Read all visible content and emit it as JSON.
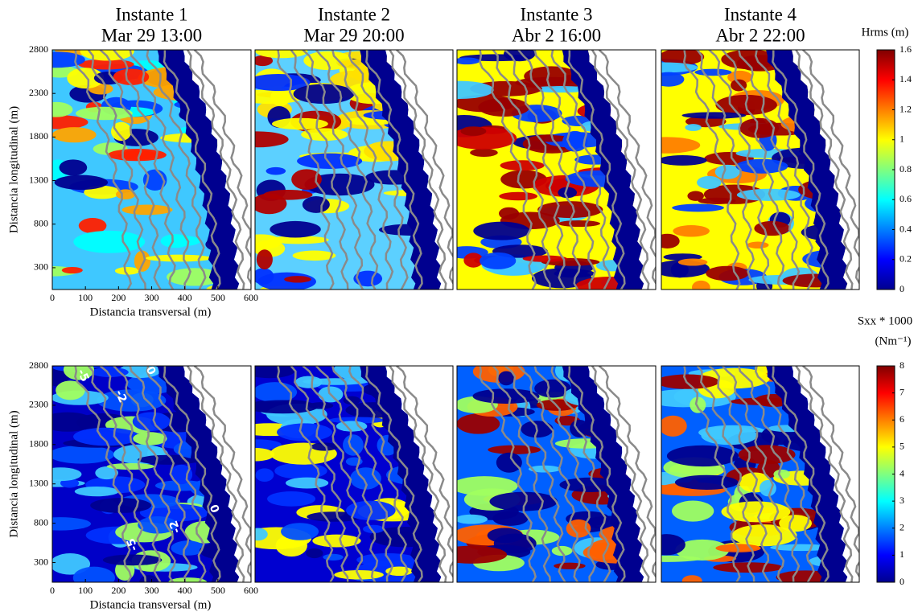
{
  "chart_data": [
    {
      "type": "contour",
      "title": [
        "Instante 1",
        "Mar 29 13:00"
      ],
      "xlabel": "Distancia transversal (m)",
      "ylabel": "Distancia longitudinal (m)",
      "xlim": [
        0,
        600
      ],
      "ylim": [
        50,
        2800
      ],
      "xticks": [
        0,
        100,
        200,
        300,
        400,
        500,
        600
      ],
      "yticks": [
        300,
        800,
        1300,
        1800,
        2300,
        2800
      ]
    },
    {
      "type": "contour",
      "title": [
        "Instante 2",
        "Mar 29 20:00"
      ],
      "xlim": [
        0,
        600
      ],
      "ylim": [
        50,
        2800
      ]
    },
    {
      "type": "contour",
      "title": [
        "Instante 3",
        "Abr 2 16:00"
      ],
      "xlim": [
        0,
        600
      ],
      "ylim": [
        50,
        2800
      ]
    },
    {
      "type": "contour",
      "title": [
        "Instante 4",
        "Abr 2 22:00"
      ],
      "xlim": [
        0,
        600
      ],
      "ylim": [
        50,
        2800
      ]
    },
    {
      "type": "colorbar",
      "title": "Hrms (m)",
      "colormap": "jet",
      "ylim": [
        0,
        1.6
      ],
      "yticks": [
        0,
        0.2,
        0.4,
        0.6,
        0.8,
        1,
        1.2,
        1.4,
        1.6
      ]
    },
    {
      "type": "contour",
      "xlabel": "Distancia transversal (m)",
      "ylabel": "Distancia longitudinal (m)",
      "xlim": [
        0,
        600
      ],
      "ylim": [
        50,
        2800
      ],
      "xticks": [
        0,
        100,
        200,
        300,
        400,
        500,
        600
      ],
      "yticks": [
        300,
        800,
        1300,
        1800,
        2300,
        2800
      ],
      "contour_labels": [
        "-5",
        "-2",
        "0",
        "0",
        "-2",
        "-5"
      ]
    },
    {
      "type": "contour",
      "xlim": [
        0,
        600
      ],
      "ylim": [
        50,
        2800
      ]
    },
    {
      "type": "contour",
      "xlim": [
        0,
        600
      ],
      "ylim": [
        50,
        2800
      ]
    },
    {
      "type": "contour",
      "xlim": [
        0,
        600
      ],
      "ylim": [
        50,
        2800
      ]
    },
    {
      "type": "colorbar",
      "title": [
        "Sxx * 1000",
        "(Nm⁻¹)"
      ],
      "colormap": "jet",
      "ylim": [
        0,
        8
      ],
      "yticks": [
        0,
        1,
        2,
        3,
        4,
        5,
        6,
        7,
        8
      ]
    }
  ]
}
